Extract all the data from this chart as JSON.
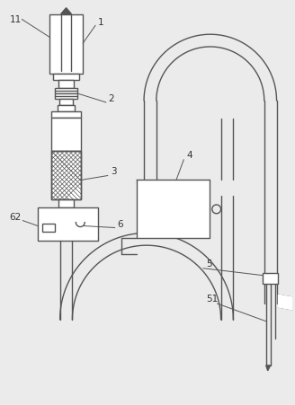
{
  "bg_color": "#ebebeb",
  "line_color": "#555555",
  "lw": 1.0,
  "fig_w": 3.28,
  "fig_h": 4.51
}
